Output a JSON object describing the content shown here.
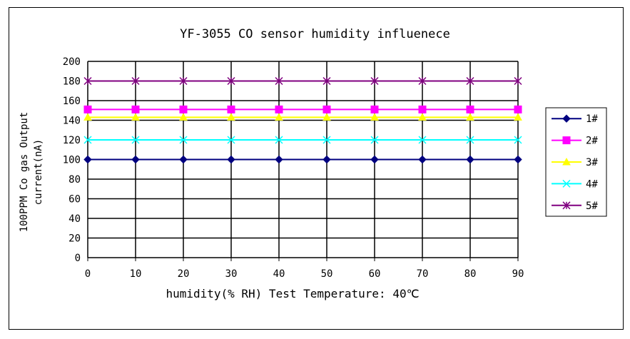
{
  "chart_data": {
    "type": "line",
    "title": "YF-3055 CO sensor humidity influenece",
    "xlabel": "humidity(% RH) Test Temperature: 40℃",
    "ylabel_line1": "100PPM Co gas Output",
    "ylabel_line2": "current(nA)",
    "x": [
      0,
      10,
      20,
      30,
      40,
      50,
      60,
      70,
      80,
      90
    ],
    "xlim": [
      0,
      90
    ],
    "ylim": [
      0,
      200
    ],
    "yticks": [
      0,
      20,
      40,
      60,
      80,
      100,
      120,
      140,
      160,
      180,
      200
    ],
    "grid": true,
    "legend_position": "right",
    "series": [
      {
        "name": "1#",
        "color": "#000080",
        "marker": "diamond",
        "values": [
          100,
          100,
          100,
          100,
          100,
          100,
          100,
          100,
          100,
          100
        ]
      },
      {
        "name": "2#",
        "color": "#ff00ff",
        "marker": "square",
        "values": [
          151,
          151,
          151,
          151,
          151,
          151,
          151,
          151,
          151,
          151
        ]
      },
      {
        "name": "3#",
        "color": "#ffff00",
        "marker": "triangle",
        "values": [
          143,
          143,
          143,
          143,
          143,
          143,
          143,
          143,
          143,
          143
        ]
      },
      {
        "name": "4#",
        "color": "#00ffff",
        "marker": "x",
        "values": [
          120,
          120,
          120,
          120,
          120,
          120,
          120,
          120,
          120,
          120
        ]
      },
      {
        "name": "5#",
        "color": "#800080",
        "marker": "star",
        "values": [
          180,
          180,
          180,
          180,
          180,
          180,
          180,
          180,
          180,
          180
        ]
      }
    ]
  }
}
